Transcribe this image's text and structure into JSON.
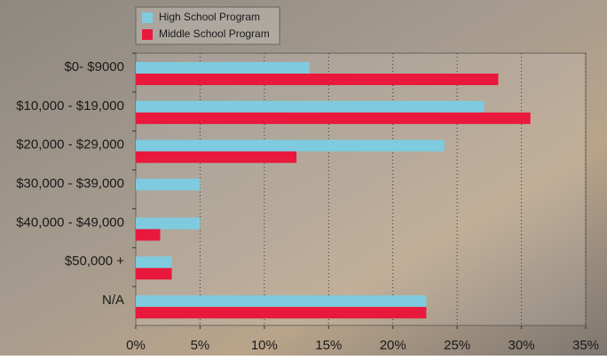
{
  "chart_data": {
    "type": "bar",
    "orientation": "horizontal",
    "categories": [
      "$0- $9000",
      "$10,000 - $19,000",
      "$20,000 - $29,000",
      "$30,000 - $39,000",
      "$40,000 - $49,000",
      "$50,000 +",
      "N/A"
    ],
    "series": [
      {
        "name": "High School Program",
        "color": "#7ecbe0",
        "values": [
          13.5,
          27.1,
          24.0,
          5.0,
          5.0,
          2.8,
          22.6
        ]
      },
      {
        "name": "Middle School Program",
        "color": "#e8193c",
        "values": [
          28.2,
          30.7,
          12.5,
          0,
          1.9,
          2.8,
          22.6
        ]
      }
    ],
    "xlim": [
      0,
      35
    ],
    "xticks": [
      {
        "value": 0,
        "label": "0%"
      },
      {
        "value": 5,
        "label": "5%"
      },
      {
        "value": 10,
        "label": "10%"
      },
      {
        "value": 15,
        "label": "15%"
      },
      {
        "value": 20,
        "label": "20%"
      },
      {
        "value": 25,
        "label": "25%"
      },
      {
        "value": 30,
        "label": "30%"
      },
      {
        "value": 35,
        "label": "35%"
      }
    ],
    "grid": true,
    "legend": "top-left"
  }
}
